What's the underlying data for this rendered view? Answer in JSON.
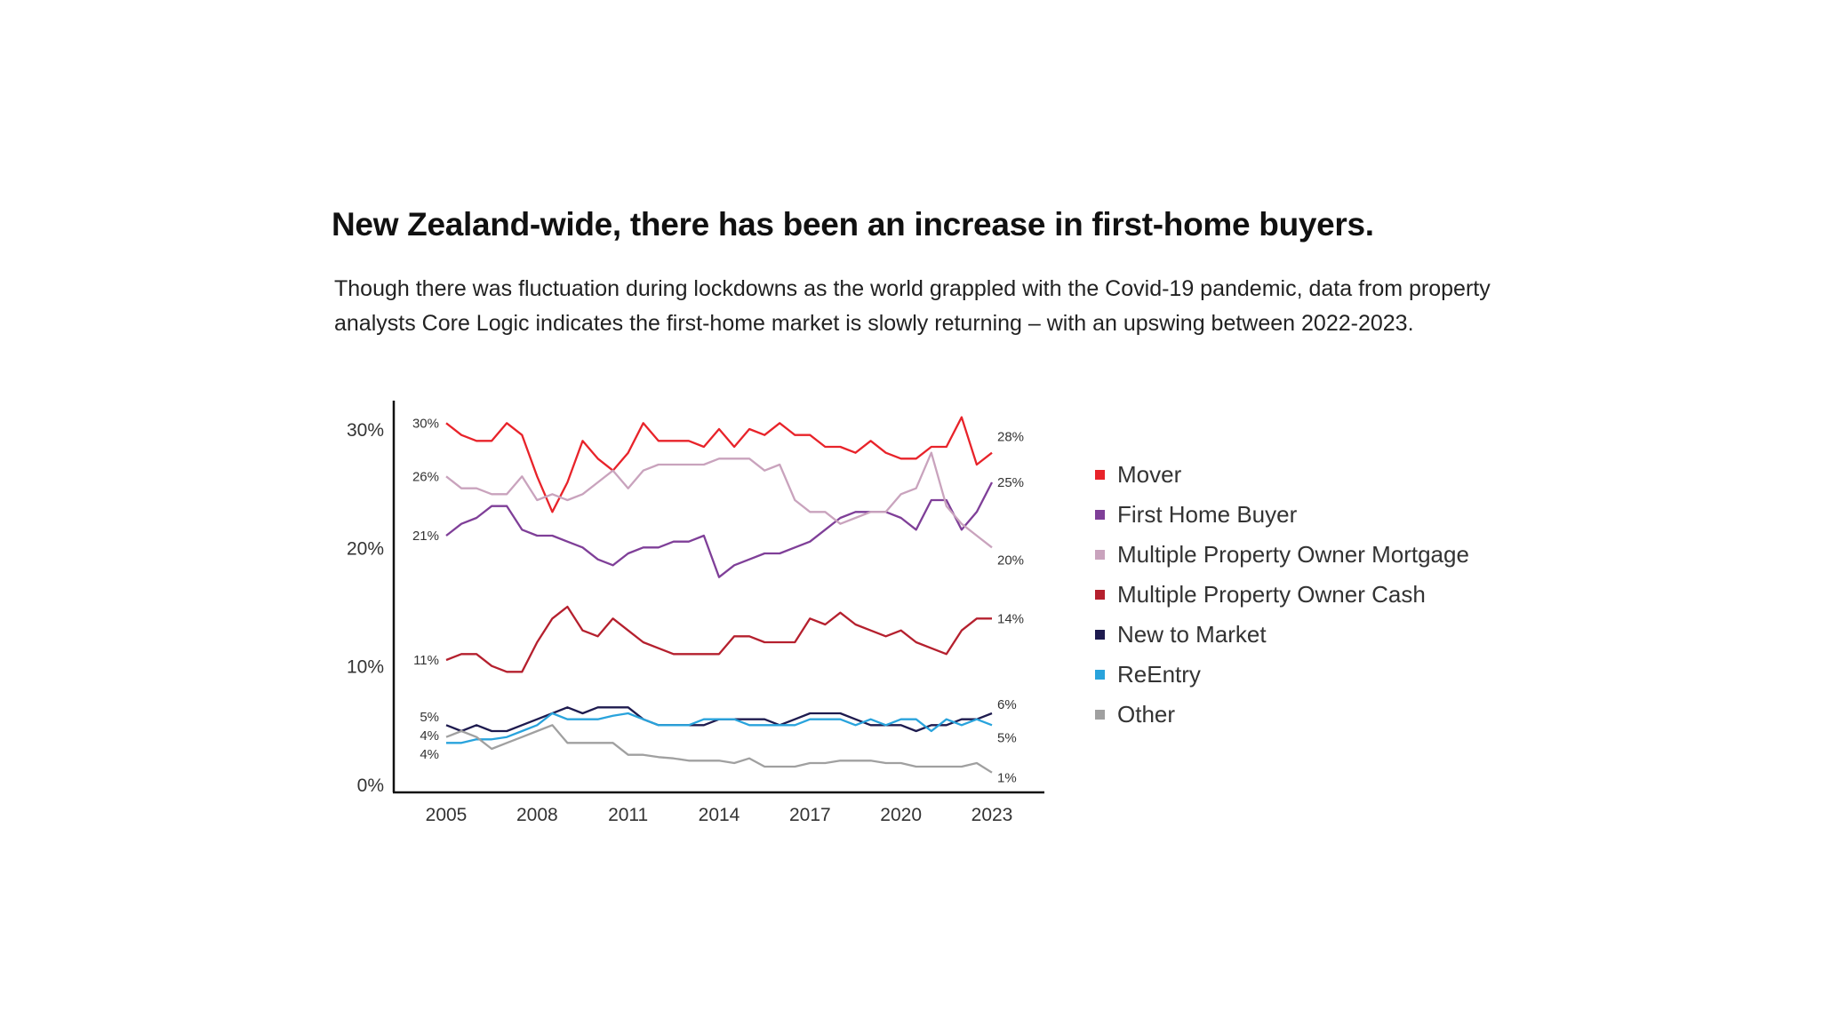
{
  "title": "New Zealand-wide, there has been an increase in first-home buyers.",
  "subtitle": "Though there was fluctuation during lockdowns as the world grappled with the Covid-19 pandemic, data from property analysts Core Logic indicates the first-home market is slowly returning – with an upswing between 2022-2023.",
  "chart_data": {
    "type": "line",
    "xlabel": "",
    "ylabel": "",
    "xlim": [
      2005,
      2023
    ],
    "ylim": [
      0,
      30
    ],
    "x_ticks": [
      "2005",
      "2008",
      "2011",
      "2014",
      "2017",
      "2020",
      "2023"
    ],
    "y_ticks": [
      "0%",
      "10%",
      "20%",
      "30%"
    ],
    "grid": false,
    "legend_placement": "right",
    "x": [
      2005,
      2005.5,
      2006,
      2006.5,
      2007,
      2007.5,
      2008,
      2008.5,
      2009,
      2009.5,
      2010,
      2010.5,
      2011,
      2011.5,
      2012,
      2012.5,
      2013,
      2013.5,
      2014,
      2014.5,
      2015,
      2015.5,
      2016,
      2016.5,
      2017,
      2017.5,
      2018,
      2018.5,
      2019,
      2019.5,
      2020,
      2020.5,
      2021,
      2021.5,
      2022,
      2022.5,
      2023
    ],
    "series": [
      {
        "name": "Mover",
        "color": "#e8232a",
        "start_label": "30%",
        "end_label": "28%",
        "values": [
          30.5,
          29.5,
          29,
          29,
          30.5,
          29.5,
          26,
          23,
          25.5,
          29,
          27.5,
          26.5,
          28,
          30.5,
          29,
          29,
          29,
          28.5,
          30,
          28.5,
          30,
          29.5,
          30.5,
          29.5,
          29.5,
          28.5,
          28.5,
          28,
          29,
          28,
          27.5,
          27.5,
          28.5,
          28.5,
          31,
          27,
          28
        ]
      },
      {
        "name": "First Home Buyer",
        "color": "#7f3f98",
        "start_label": "21%",
        "end_label": "25%",
        "values": [
          21,
          22,
          22.5,
          23.5,
          23.5,
          21.5,
          21,
          21,
          20.5,
          20,
          19,
          18.5,
          19.5,
          20,
          20,
          20.5,
          20.5,
          21,
          17.5,
          18.5,
          19,
          19.5,
          19.5,
          20,
          20.5,
          21.5,
          22.5,
          23,
          23,
          23,
          22.5,
          21.5,
          24,
          24,
          21.5,
          23,
          25.5
        ]
      },
      {
        "name": "Multiple Property Owner Mortgage",
        "color": "#c9a3bd",
        "start_label": "26%",
        "end_label": "20%",
        "values": [
          26,
          25,
          25,
          24.5,
          24.5,
          26,
          24,
          24.5,
          24,
          24.5,
          25.5,
          26.5,
          25,
          26.5,
          27,
          27,
          27,
          27,
          27.5,
          27.5,
          27.5,
          26.5,
          27,
          24,
          23,
          23,
          22,
          22.5,
          23,
          23,
          24.5,
          25,
          28,
          23.5,
          22,
          21,
          20
        ]
      },
      {
        "name": "Multiple Property Owner Cash",
        "color": "#b5202e",
        "start_label": "11%",
        "end_label": "14%",
        "values": [
          10.5,
          11,
          11,
          10,
          9.5,
          9.5,
          12,
          14,
          15,
          13,
          12.5,
          14,
          13,
          12,
          11.5,
          11,
          11,
          11,
          11,
          12.5,
          12.5,
          12,
          12,
          12,
          14,
          13.5,
          14.5,
          13.5,
          13,
          12.5,
          13,
          12,
          11.5,
          11,
          13,
          14,
          14
        ]
      },
      {
        "name": "New to Market",
        "color": "#1e1b4f",
        "start_label": "5%",
        "end_label": "6%",
        "values": [
          5,
          4.5,
          5,
          4.5,
          4.5,
          5,
          5.5,
          6,
          6.5,
          6,
          6.5,
          6.5,
          6.5,
          5.5,
          5,
          5,
          5,
          5,
          5.5,
          5.5,
          5.5,
          5.5,
          5,
          5.5,
          6,
          6,
          6,
          5.5,
          5,
          5,
          5,
          4.5,
          5,
          5,
          5.5,
          5.5,
          6
        ]
      },
      {
        "name": "ReEntry",
        "color": "#29a3dc",
        "start_label": "4%",
        "end_label": "5%",
        "values": [
          3.5,
          3.5,
          3.8,
          3.8,
          4,
          4.5,
          5,
          6,
          5.5,
          5.5,
          5.5,
          5.8,
          6,
          5.5,
          5,
          5,
          5,
          5.5,
          5.5,
          5.5,
          5,
          5,
          5,
          5,
          5.5,
          5.5,
          5.5,
          5,
          5.5,
          5,
          5.5,
          5.5,
          4.5,
          5.5,
          5,
          5.5,
          5
        ]
      },
      {
        "name": "Other",
        "color": "#a0a0a0",
        "start_label": "4%",
        "end_label": "1%",
        "values": [
          4,
          4.5,
          4,
          3,
          3.5,
          4,
          4.5,
          5,
          3.5,
          3.5,
          3.5,
          3.5,
          2.5,
          2.5,
          2.3,
          2.2,
          2,
          2,
          2,
          1.8,
          2.2,
          1.5,
          1.5,
          1.5,
          1.8,
          1.8,
          2,
          2,
          2,
          1.8,
          1.8,
          1.5,
          1.5,
          1.5,
          1.5,
          1.8,
          1
        ]
      }
    ]
  }
}
